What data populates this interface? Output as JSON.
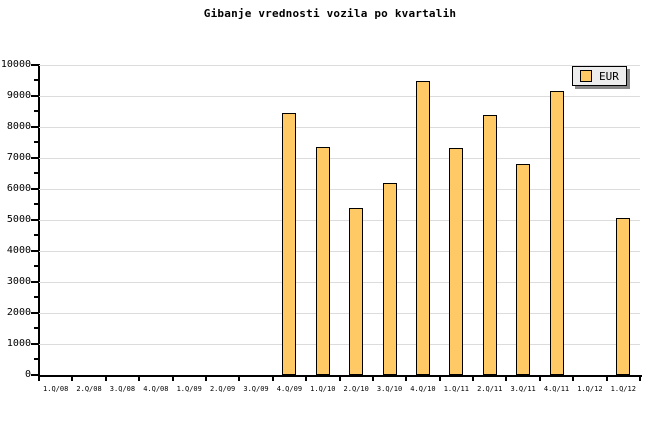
{
  "title": "Gibanje vrednosti vozila po kvartalih",
  "legend": {
    "label": "EUR"
  },
  "colors": {
    "bar_fill": "#FFC966",
    "bar_border": "#000000",
    "grid": "#DCDCDC",
    "axis": "#000000",
    "tick": "#000000",
    "text": "#000000",
    "legend_bg": "#EDEDED",
    "legend_border": "#000000",
    "legend_shadow": "#888888",
    "background": "#FFFFFF"
  },
  "chart_data": {
    "type": "bar",
    "title": "Gibanje vrednosti vozila po kvartalih",
    "categories": [
      "1.Q/08",
      "2.Q/08",
      "3.Q/08",
      "4.Q/08",
      "1.Q/09",
      "2.Q/09",
      "3.Q/09",
      "4.Q/09",
      "1.Q/10",
      "2.Q/10",
      "3.Q/10",
      "4.Q/10",
      "1.Q/11",
      "2.Q/11",
      "3.Q/11",
      "4.Q/11",
      "1.Q/12",
      "1.Q/12"
    ],
    "series": [
      {
        "name": "EUR",
        "values": [
          0,
          0,
          0,
          0,
          0,
          0,
          0,
          8460,
          7340,
          5400,
          6190,
          9480,
          7330,
          8390,
          6800,
          9150,
          0,
          5080
        ]
      }
    ],
    "xlabel": "",
    "ylabel": "",
    "ylim": [
      0,
      10000
    ],
    "ytick_step": 1000,
    "ytick_minor_step": 500,
    "ytick_labels": [
      "0",
      "1000",
      "2000",
      "3000",
      "4000",
      "5000",
      "6000",
      "7000",
      "8000",
      "9000",
      "10000"
    ],
    "grid": "horizontal",
    "legend_position": "top-right"
  }
}
